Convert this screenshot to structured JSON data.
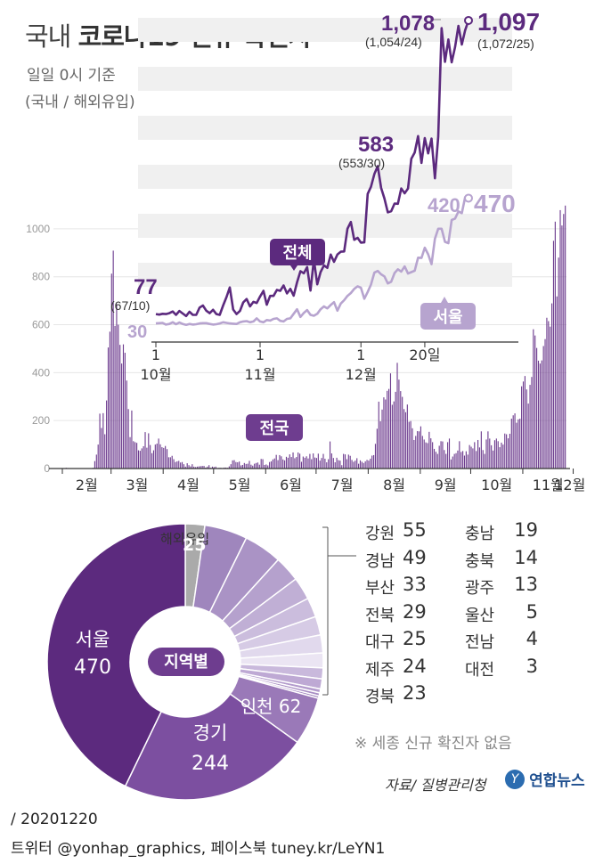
{
  "title": {
    "prefix": "국내",
    "main": "코로나19 신규 확진자"
  },
  "subtitle": "일일 0시 기준",
  "subtitle2": "(국내 / 해외유입)",
  "colors": {
    "total": "#5c2a7e",
    "seoul": "#b7a4cf",
    "bars": "#6e3d8f",
    "pie_dark": "#4e2370",
    "pie_seoul": "#5c2a7e",
    "pie_gyeonggi": "#7c4fa0",
    "pie_incheon": "#9a79b8",
    "pie_overseas": "#aaaaaa",
    "grid": "#eeeeee",
    "label_box": "#6e3d8f"
  },
  "chart_data": [
    {
      "type": "bar",
      "label": "전국",
      "xlabels": [
        "2월",
        "3월",
        "4월",
        "5월",
        "6월",
        "7월",
        "8월",
        "9월",
        "10월",
        "11월",
        "12월"
      ],
      "ylim": [
        0,
        1100
      ],
      "yticks": [
        0,
        200,
        400,
        600,
        800,
        1000
      ],
      "series_desc": "daily new cases Feb 1 - Dec 20 2020",
      "values": [
        1,
        1,
        3,
        2,
        1,
        0,
        0,
        0,
        1,
        0,
        0,
        0,
        0,
        0,
        0,
        0,
        0,
        0,
        3,
        31,
        58,
        100,
        229,
        169,
        231,
        143,
        284,
        505,
        571,
        813,
        909,
        595,
        686,
        600,
        516,
        438,
        518,
        483,
        367,
        248,
        131,
        242,
        114,
        110,
        107,
        76,
        74,
        84,
        93,
        152,
        87,
        147,
        98,
        64,
        76,
        100,
        104,
        125,
        101,
        89,
        86,
        94,
        81,
        47,
        47,
        53,
        39,
        27,
        30,
        32,
        25,
        27,
        18,
        8,
        22,
        14,
        9,
        18,
        8,
        6,
        8,
        9,
        10,
        11,
        11,
        4,
        8,
        14,
        3,
        8,
        6,
        8,
        2,
        3,
        3,
        2,
        4,
        4,
        3,
        9,
        18,
        34,
        35,
        27,
        26,
        29,
        13,
        15,
        23,
        19,
        20,
        32,
        16,
        12,
        20,
        23,
        25,
        16,
        40,
        39,
        15,
        17,
        13,
        27,
        30,
        38,
        42,
        57,
        35,
        56,
        51,
        38,
        34,
        49,
        45,
        59,
        48,
        67,
        43,
        48,
        67,
        62,
        28,
        50,
        45,
        51,
        42,
        61,
        39,
        63,
        46,
        44,
        62,
        33,
        44,
        61,
        41,
        26,
        39,
        113,
        63,
        44,
        26,
        45,
        35,
        33,
        14,
        61,
        59,
        39,
        58,
        53,
        36,
        28,
        33,
        43,
        20,
        34,
        28,
        23,
        30,
        36,
        33,
        41,
        54,
        56,
        103,
        166,
        279,
        197,
        246,
        297,
        288,
        324,
        332,
        397,
        266,
        280,
        320,
        441,
        371,
        323,
        299,
        248,
        235,
        267,
        195,
        198,
        168,
        119,
        136,
        156,
        155,
        176,
        136,
        121,
        109,
        106,
        153,
        126,
        110,
        82,
        70,
        61,
        95,
        114,
        113,
        77,
        61,
        110,
        125,
        38,
        50,
        61,
        64,
        75,
        114,
        69,
        73,
        54,
        72,
        58,
        98,
        91,
        84,
        110,
        73,
        119,
        88,
        155,
        77,
        61,
        121,
        155,
        125,
        97,
        75,
        118,
        125,
        114,
        89,
        108,
        100,
        146,
        143,
        126,
        145,
        208,
        222,
        230,
        191,
        205,
        208,
        343,
        363,
        386,
        330,
        271,
        349,
        382,
        581,
        555,
        503,
        450,
        438,
        451,
        511,
        540,
        629,
        615,
        592,
        689,
        950,
        1030,
        718,
        880,
        1078,
        1014,
        1062,
        1097
      ]
    },
    {
      "type": "line",
      "xlabels": [
        {
          "day": "1",
          "month": "10월"
        },
        {
          "day": "1",
          "month": "11월"
        },
        {
          "day": "1",
          "month": "12월"
        },
        {
          "day": "20일",
          "month": ""
        }
      ],
      "series": [
        {
          "name": "전체",
          "values": [
            61,
            59,
            62,
            61,
            64,
            70,
            58,
            72,
            63,
            54,
            69,
            58,
            58,
            84,
            91,
            73,
            64,
            76,
            61,
            58,
            91,
            121,
            155,
            77,
            61,
            72,
            102,
            114,
            88,
            104,
            100,
            123,
            143,
            94,
            125,
            125,
            146,
            143,
            162,
            134,
            150,
            126,
            173,
            212,
            205,
            227,
            144,
            253,
            166,
            209,
            233,
            224,
            271,
            245,
            271,
            281,
            282,
            362,
            386,
            323,
            330,
            313,
            314,
            485,
            510,
            555,
            583,
            506,
            469,
            420,
            424,
            451,
            450,
            504,
            487,
            504,
            609,
            631,
            689,
            594,
            682,
            628,
            680,
            540,
            687,
            1070,
            951,
            1030,
            949,
            1003,
            1078,
            1012,
            1062,
            1097
          ]
        },
        {
          "name": "서울",
          "values": [
            28,
            29,
            30,
            24,
            26,
            32,
            25,
            31,
            26,
            23,
            26,
            24,
            25,
            28,
            29,
            29,
            26,
            24,
            25,
            28,
            32,
            30,
            28,
            27,
            26,
            32,
            35,
            36,
            32,
            35,
            46,
            35,
            32,
            40,
            38,
            44,
            46,
            37,
            35,
            44,
            46,
            62,
            78,
            51,
            65,
            75,
            58,
            55,
            62,
            78,
            88,
            81,
            93,
            103,
            73,
            98,
            110,
            125,
            135,
            150,
            159,
            154,
            115,
            139,
            165,
            207,
            213,
            201,
            194,
            169,
            175,
            206,
            219,
            211,
            229,
            204,
            209,
            214,
            260,
            259,
            295,
            272,
            237,
            327,
            362,
            362,
            316,
            311,
            393,
            398,
            423,
            417,
            473,
            470
          ]
        }
      ],
      "annotations": [
        {
          "label": "77",
          "sub": "(67/10)"
        },
        {
          "label": "30"
        },
        {
          "label": "583",
          "sub": "(553/30)"
        },
        {
          "label": "1,078",
          "sub": "(1,054/24)"
        },
        {
          "label": "1,097",
          "sub": "(1,072/25)"
        },
        {
          "label": "420"
        },
        {
          "label": "470"
        }
      ]
    },
    {
      "type": "pie",
      "center_label": "지역별",
      "slices": [
        {
          "name": "해외유입",
          "value": 25
        },
        {
          "name": "강원",
          "value": 55
        },
        {
          "name": "경남",
          "value": 49
        },
        {
          "name": "부산",
          "value": 33
        },
        {
          "name": "전북",
          "value": 29
        },
        {
          "name": "대구",
          "value": 25
        },
        {
          "name": "제주",
          "value": 24
        },
        {
          "name": "경북",
          "value": 23
        },
        {
          "name": "충남",
          "value": 19
        },
        {
          "name": "충북",
          "value": 14
        },
        {
          "name": "광주",
          "value": 13
        },
        {
          "name": "울산",
          "value": 5
        },
        {
          "name": "전남",
          "value": 4
        },
        {
          "name": "대전",
          "value": 3
        },
        {
          "name": "인천",
          "value": 62
        },
        {
          "name": "경기",
          "value": 244
        },
        {
          "name": "서울",
          "value": 470
        }
      ]
    }
  ],
  "labels": {
    "total": "전체",
    "seoul": "서울",
    "nationwide": "전국",
    "overseas": "해외유입",
    "overseas_value": "25",
    "seoul_name": "서울",
    "seoul_value": "470",
    "gyeonggi_name": "경기",
    "gyeonggi_value": "244",
    "incheon": "인천 62",
    "center": "지역별"
  },
  "regions_left": [
    {
      "name": "강원",
      "value": "55"
    },
    {
      "name": "경남",
      "value": "49"
    },
    {
      "name": "부산",
      "value": "33"
    },
    {
      "name": "전북",
      "value": "29"
    },
    {
      "name": "대구",
      "value": "25"
    },
    {
      "name": "제주",
      "value": "24"
    },
    {
      "name": "경북",
      "value": "23"
    }
  ],
  "regions_right": [
    {
      "name": "충남",
      "value": "19"
    },
    {
      "name": "충북",
      "value": "14"
    },
    {
      "name": "광주",
      "value": "13"
    },
    {
      "name": "울산",
      "value": "5"
    },
    {
      "name": "전남",
      "value": "4"
    },
    {
      "name": "대전",
      "value": "3"
    }
  ],
  "note": "※ 세종 신규 확진자 없음",
  "source": "자료/ 질병관리청",
  "logo": "연합뉴스",
  "footer_date": "/ 20201220",
  "footer_social": "트위터 @yonhap_graphics, 페이스북 tuney.kr/LeYN1"
}
